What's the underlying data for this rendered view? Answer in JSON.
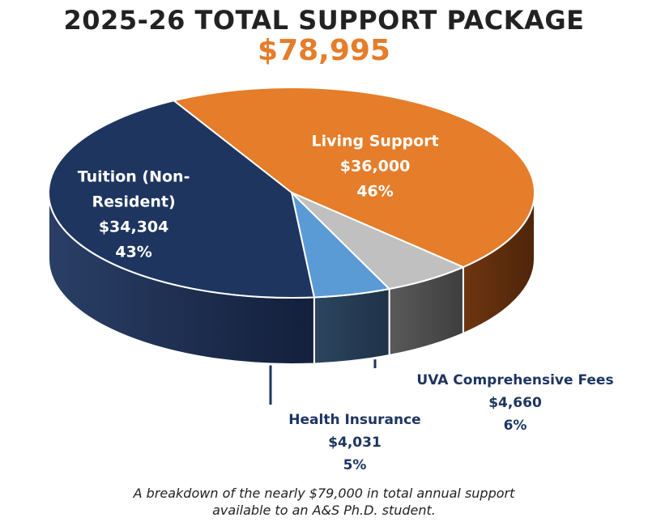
{
  "header": {
    "title": "2025-26 TOTAL SUPPORT PACKAGE",
    "total": "$78,995"
  },
  "colors": {
    "tuition": "#1e3560",
    "living": "#e57d2a",
    "fees": "#c0c0c0",
    "health": "#5b9bd5",
    "title_accent": "#e57d2a"
  },
  "chart_data": {
    "type": "pie",
    "title": "2025-26 TOTAL SUPPORT PACKAGE",
    "total": "$78,995",
    "style": "3d",
    "slices": [
      {
        "label": "Living Support",
        "value": 36000,
        "display_value": "$36,000",
        "percent": "46%",
        "color": "#e57d2a",
        "label_placement": "inside"
      },
      {
        "label": "UVA Comprehensive Fees",
        "value": 4660,
        "display_value": "$4,660",
        "percent": "6%",
        "color": "#c0c0c0",
        "label_placement": "outside"
      },
      {
        "label": "Health Insurance",
        "value": 4031,
        "display_value": "$4,031",
        "percent": "5%",
        "color": "#5b9bd5",
        "label_placement": "outside"
      },
      {
        "label_lines": [
          "Tuition (Non-",
          "Resident)"
        ],
        "label": "Tuition (Non-Resident)",
        "value": 34304,
        "display_value": "$34,304",
        "percent": "43%",
        "color": "#1e3560",
        "label_placement": "inside"
      }
    ]
  },
  "caption": {
    "line1": "A breakdown of the nearly $79,000 in total annual support",
    "line2": "available to an A&S Ph.D. student."
  }
}
